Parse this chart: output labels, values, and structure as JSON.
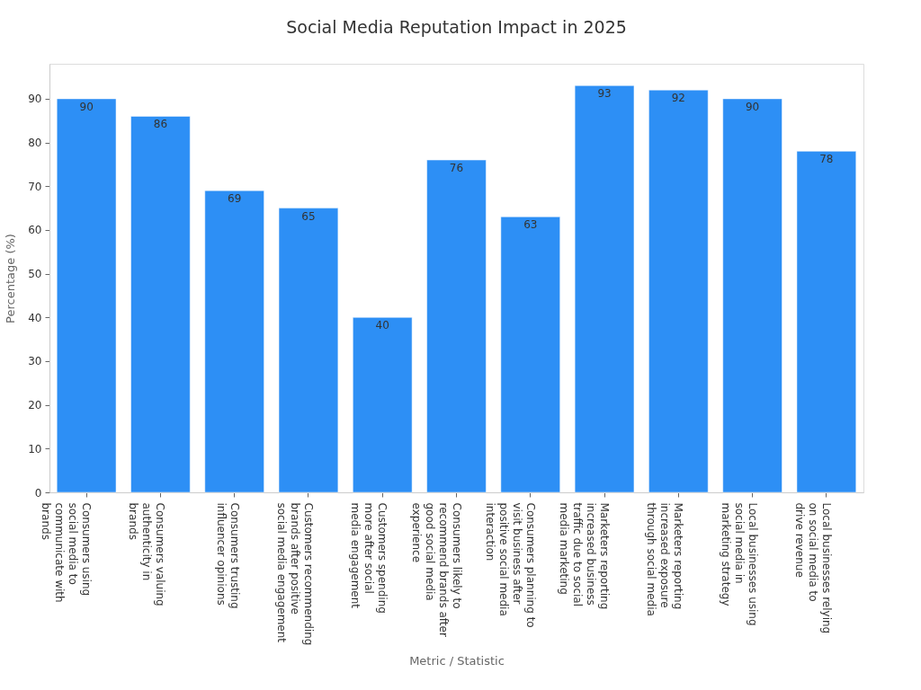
{
  "chart_data": {
    "type": "bar",
    "title": "Social Media Reputation Impact in 2025",
    "xlabel": "Metric / Statistic",
    "ylabel": "Percentage (%)",
    "categories": [
      "Consumers using\nsocial media to\ncommunicate with\nbrands",
      "Consumers valuing\nauthenticity in\nbrands",
      "Consumers trusting\ninfluencer opinions",
      "Customers recommending\nbrands after positive\nsocial media engagement",
      "Customers spending\nmore after social\nmedia engagement",
      "Consumers likely to\nrecommend brands after\ngood social media\nexperience",
      "Consumers planning to\nvisit business after\npositive social media\ninteraction",
      "Marketers reporting\nincreased business\ntraffic due to social\nmedia marketing",
      "Marketers reporting\nincreased exposure\nthrough social media",
      "Local businesses using\nsocial media in\nmarketing strategy",
      "Local businesses relying\non social media to\ndrive revenue"
    ],
    "values": [
      90,
      86,
      69,
      65,
      40,
      76,
      63,
      93,
      92,
      90,
      78
    ],
    "color": "#2d8ff5",
    "ylim": [
      0,
      98
    ],
    "yticks": [
      0,
      10,
      20,
      30,
      40,
      50,
      60,
      70,
      80,
      90
    ],
    "data_labels": true
  }
}
